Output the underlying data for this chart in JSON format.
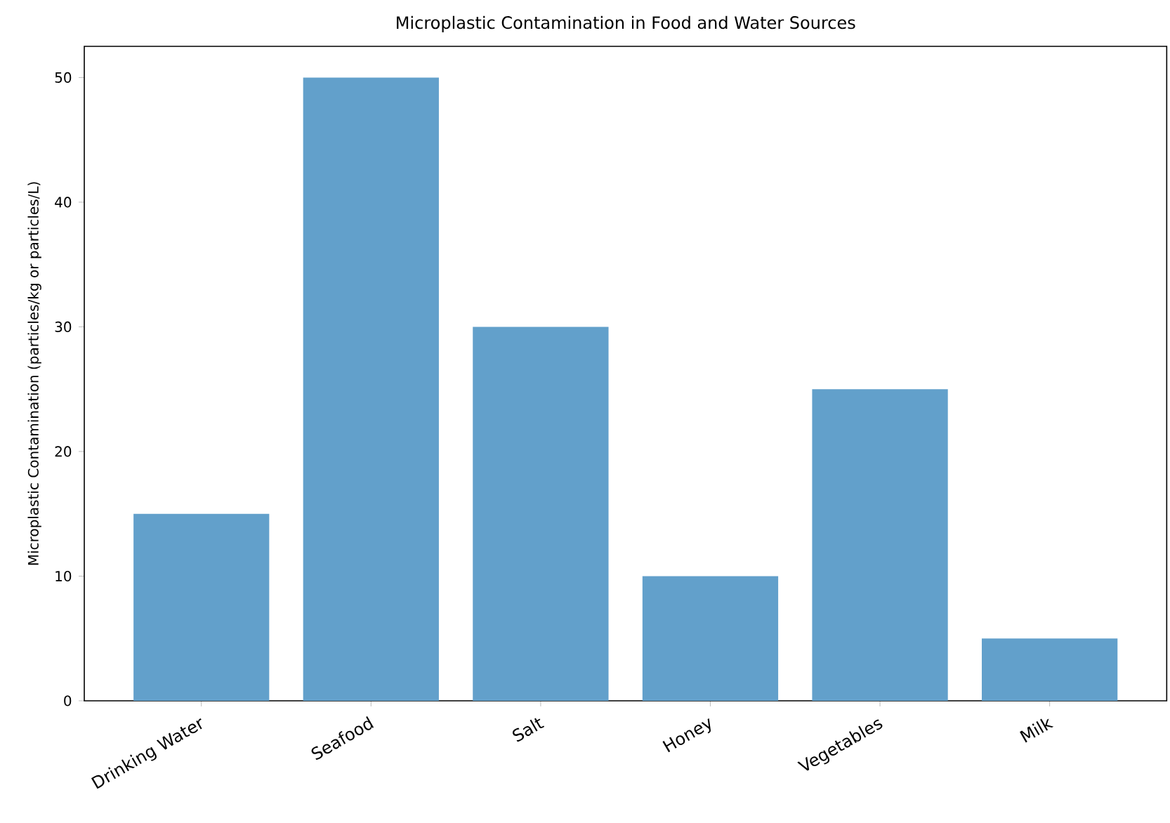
{
  "chart_data": {
    "type": "bar",
    "title": "Microplastic Contamination in Food and Water Sources",
    "ylabel": "Microplastic Contamination (particles/kg or particles/L)",
    "categories": [
      "Drinking Water",
      "Seafood",
      "Salt",
      "Honey",
      "Vegetables",
      "Milk"
    ],
    "values": [
      15,
      50,
      30,
      10,
      25,
      5
    ],
    "color": "#62a0cb",
    "ylim": [
      0,
      52.5
    ],
    "yticks": [
      0,
      10,
      20,
      30,
      40,
      50
    ]
  }
}
